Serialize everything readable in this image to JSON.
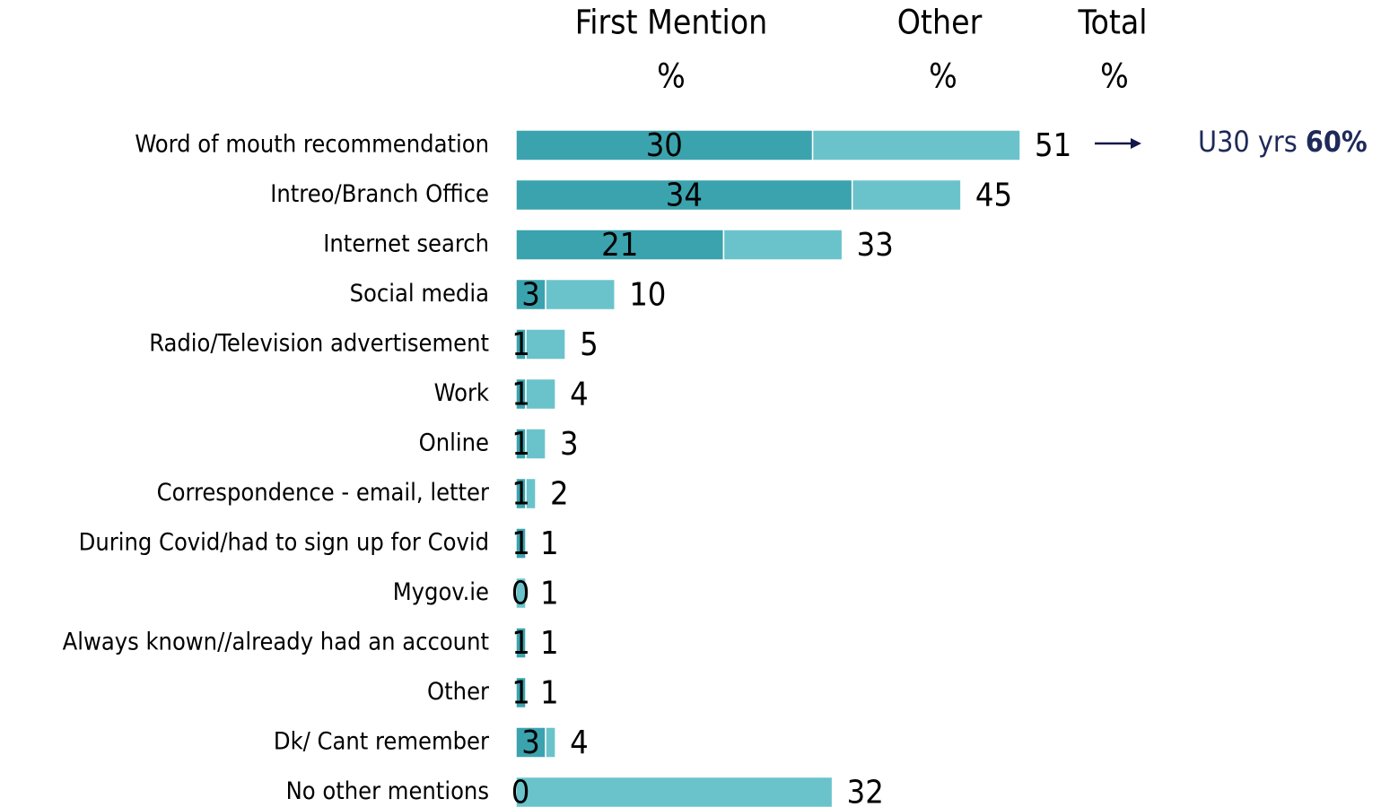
{
  "chart_data": {
    "type": "stacked_bar_horizontal",
    "categories": [
      "Word of mouth recommendation",
      "Intreo/Branch Office",
      "Internet search",
      "Social media",
      "Radio/Television advertisement",
      "Work",
      "Online",
      "Correspondence - email, letter",
      "During Covid/had to sign up for Covid",
      "Mygov.ie",
      "Always known//already had an account",
      "Other",
      "Dk/ Cant remember",
      "No other mentions"
    ],
    "series": [
      {
        "name": "First Mention",
        "color": "#3ba3ae",
        "values": [
          30,
          34,
          21,
          3,
          1,
          1,
          1,
          1,
          1,
          0,
          1,
          1,
          3,
          0
        ]
      },
      {
        "name": "Other",
        "color": "#6ac3cb",
        "values": [
          21,
          11,
          12,
          7,
          4,
          3,
          2,
          1,
          0,
          1,
          0,
          0,
          1,
          32
        ]
      }
    ],
    "total_name": "Total",
    "unit": "%",
    "totals": [
      51,
      45,
      33,
      10,
      5,
      4,
      3,
      2,
      1,
      1,
      1,
      1,
      4,
      32
    ],
    "annotation": {
      "text": "U30 yrs",
      "value": "60%"
    },
    "xlim": [
      0,
      60
    ]
  }
}
